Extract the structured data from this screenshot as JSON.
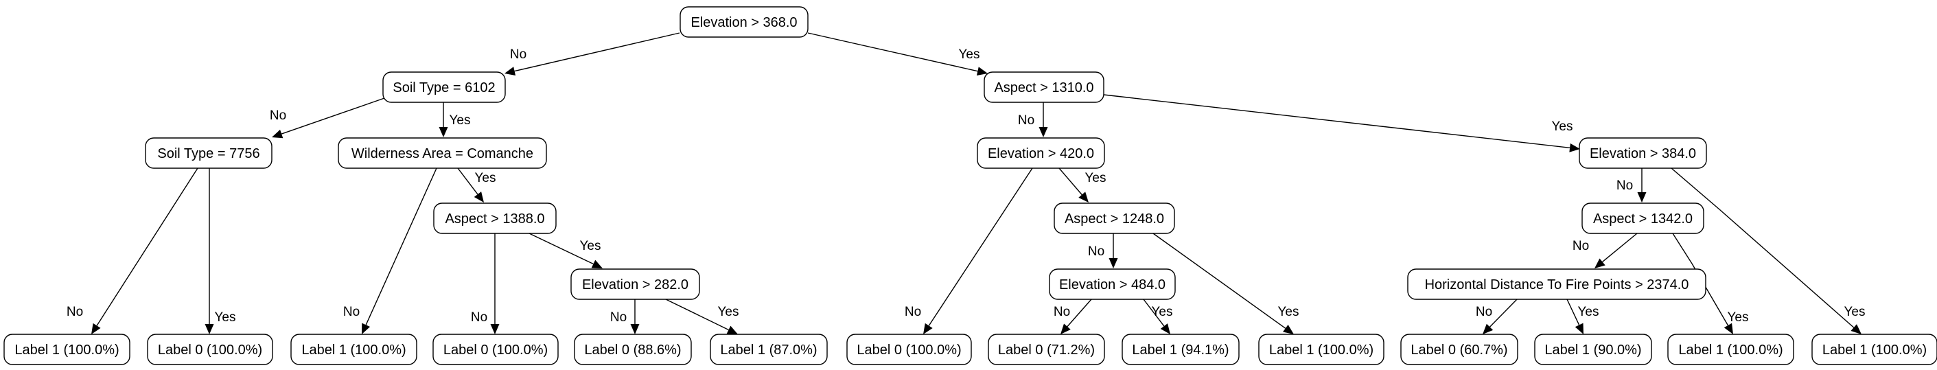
{
  "tree": {
    "nodes": {
      "root": "Elevation > 368.0",
      "n_l": "Soil Type = 6102",
      "n_r": "Aspect > 1310.0",
      "n_ll": "Soil Type = 7756",
      "n_lr": "Wilderness Area = Comanche",
      "n_rl": "Elevation > 420.0",
      "n_rr": "Elevation > 384.0",
      "n_lrr": "Aspect > 1388.0",
      "n_rlr": "Aspect > 1248.0",
      "n_rrl": "Aspect > 1342.0",
      "n_lrrr": "Elevation > 282.0",
      "n_rlrl": "Elevation > 484.0",
      "n_rrll": "Horizontal Distance To Fire Points > 2374.0",
      "leaf_1": "Label 1 (100.0%)",
      "leaf_2": "Label 0 (100.0%)",
      "leaf_3": "Label 1 (100.0%)",
      "leaf_4": "Label 0 (100.0%)",
      "leaf_5": "Label 0 (88.6%)",
      "leaf_6": "Label 1 (87.0%)",
      "leaf_7": "Label 0 (100.0%)",
      "leaf_8": "Label 0 (71.2%)",
      "leaf_9": "Label 1 (94.1%)",
      "leaf_10": "Label 1 (100.0%)",
      "leaf_11": "Label 0 (60.7%)",
      "leaf_12": "Label 1 (90.0%)",
      "leaf_13": "Label 1 (100.0%)",
      "leaf_14": "Label 1 (100.0%)"
    },
    "edge_labels": {
      "no": "No",
      "yes": "Yes"
    }
  }
}
